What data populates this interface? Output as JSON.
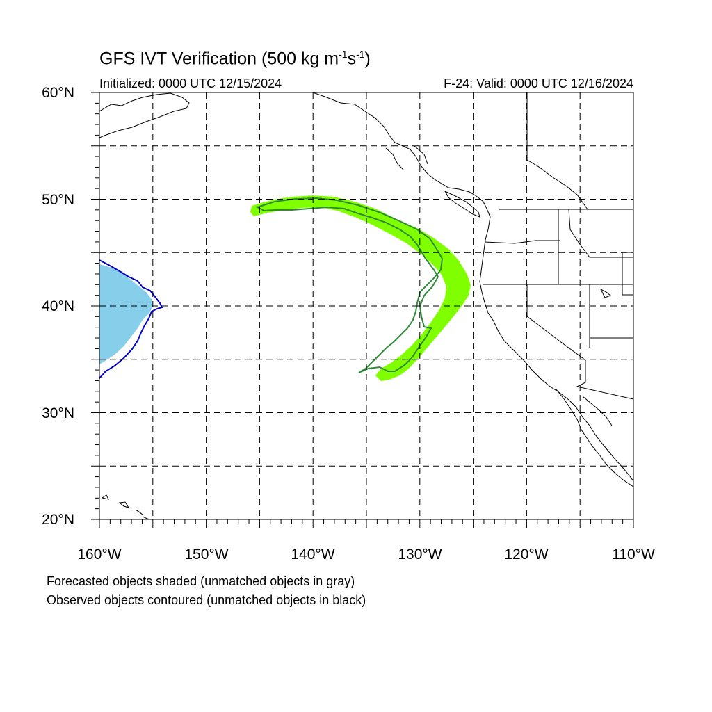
{
  "title": {
    "main_prefix": "GFS IVT Verification (500 kg m",
    "sup1": "-1",
    "mid": "s",
    "sup2": "-1",
    "suffix": ")"
  },
  "initialized_label": "Initialized: 0000 UTC 12/15/2024",
  "valid_label": "F-24: Valid: 0000 UTC 12/16/2024",
  "map": {
    "lon_range": [
      -160,
      -110
    ],
    "lat_range": [
      20,
      60
    ],
    "lat_ticks": [
      "20°N",
      "30°N",
      "40°N",
      "50°N",
      "60°N"
    ],
    "lon_ticks": [
      "160°W",
      "150°W",
      "140°W",
      "130°W",
      "120°W",
      "110°W"
    ],
    "grid_spacing_deg": 5,
    "colors": {
      "matched_forecast_fill": "#80ff00",
      "matched_observed_contour": "#2e8b3a",
      "second_forecast_fill": "#87ceeb",
      "second_observed_contour": "#0000cd",
      "coastline": "#000000"
    }
  },
  "legend_notes": {
    "forecast": "Forecasted objects shaded (unmatched objects in gray)",
    "observed": "Observed objects contoured (unmatched objects in black)"
  }
}
